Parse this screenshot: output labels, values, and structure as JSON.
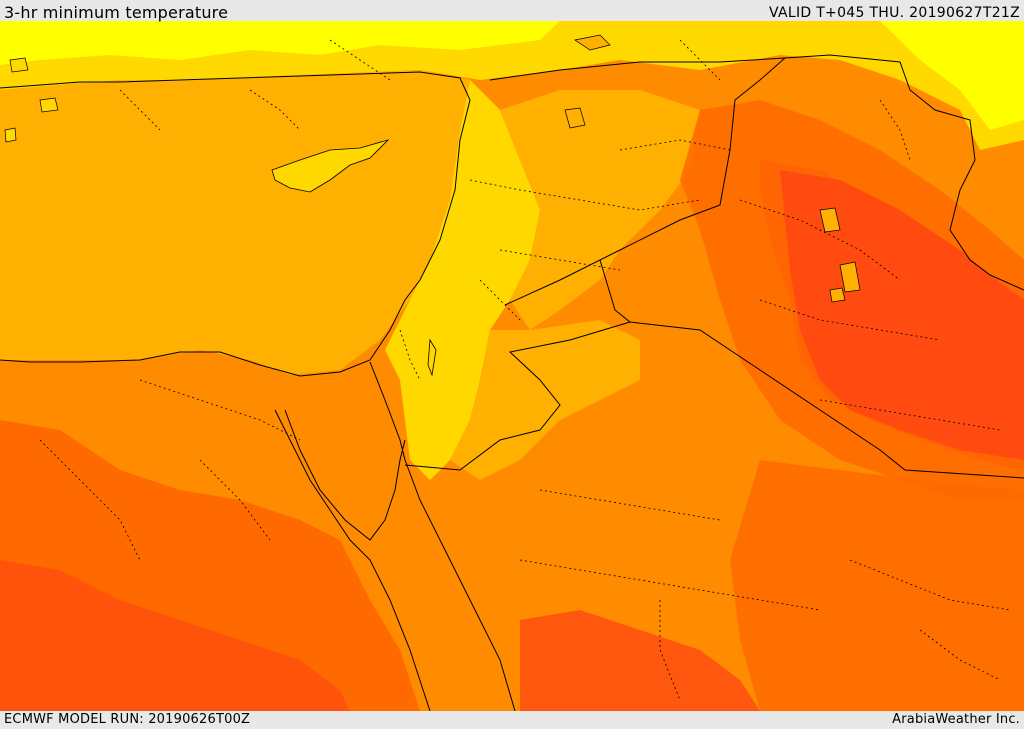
{
  "header": {
    "title": "3-hr minimum temperature",
    "valid": "VALID T+045 THU. 20190627T21Z"
  },
  "footer": {
    "model_run": "ECMWF MODEL RUN: 20190626T00Z",
    "credit": "ArabiaWeather Inc."
  },
  "map": {
    "region": "Eastern Mediterranean / Levant / Iraq / Northern Arabia",
    "palette": {
      "light_yellow": "#ffff00",
      "yellow": "#ffd800",
      "light_orange": "#ffb000",
      "orange": "#ff8c00",
      "dark_orange": "#ff6a00",
      "red_orange": "#ff4a10"
    },
    "line_color": "#000000"
  }
}
